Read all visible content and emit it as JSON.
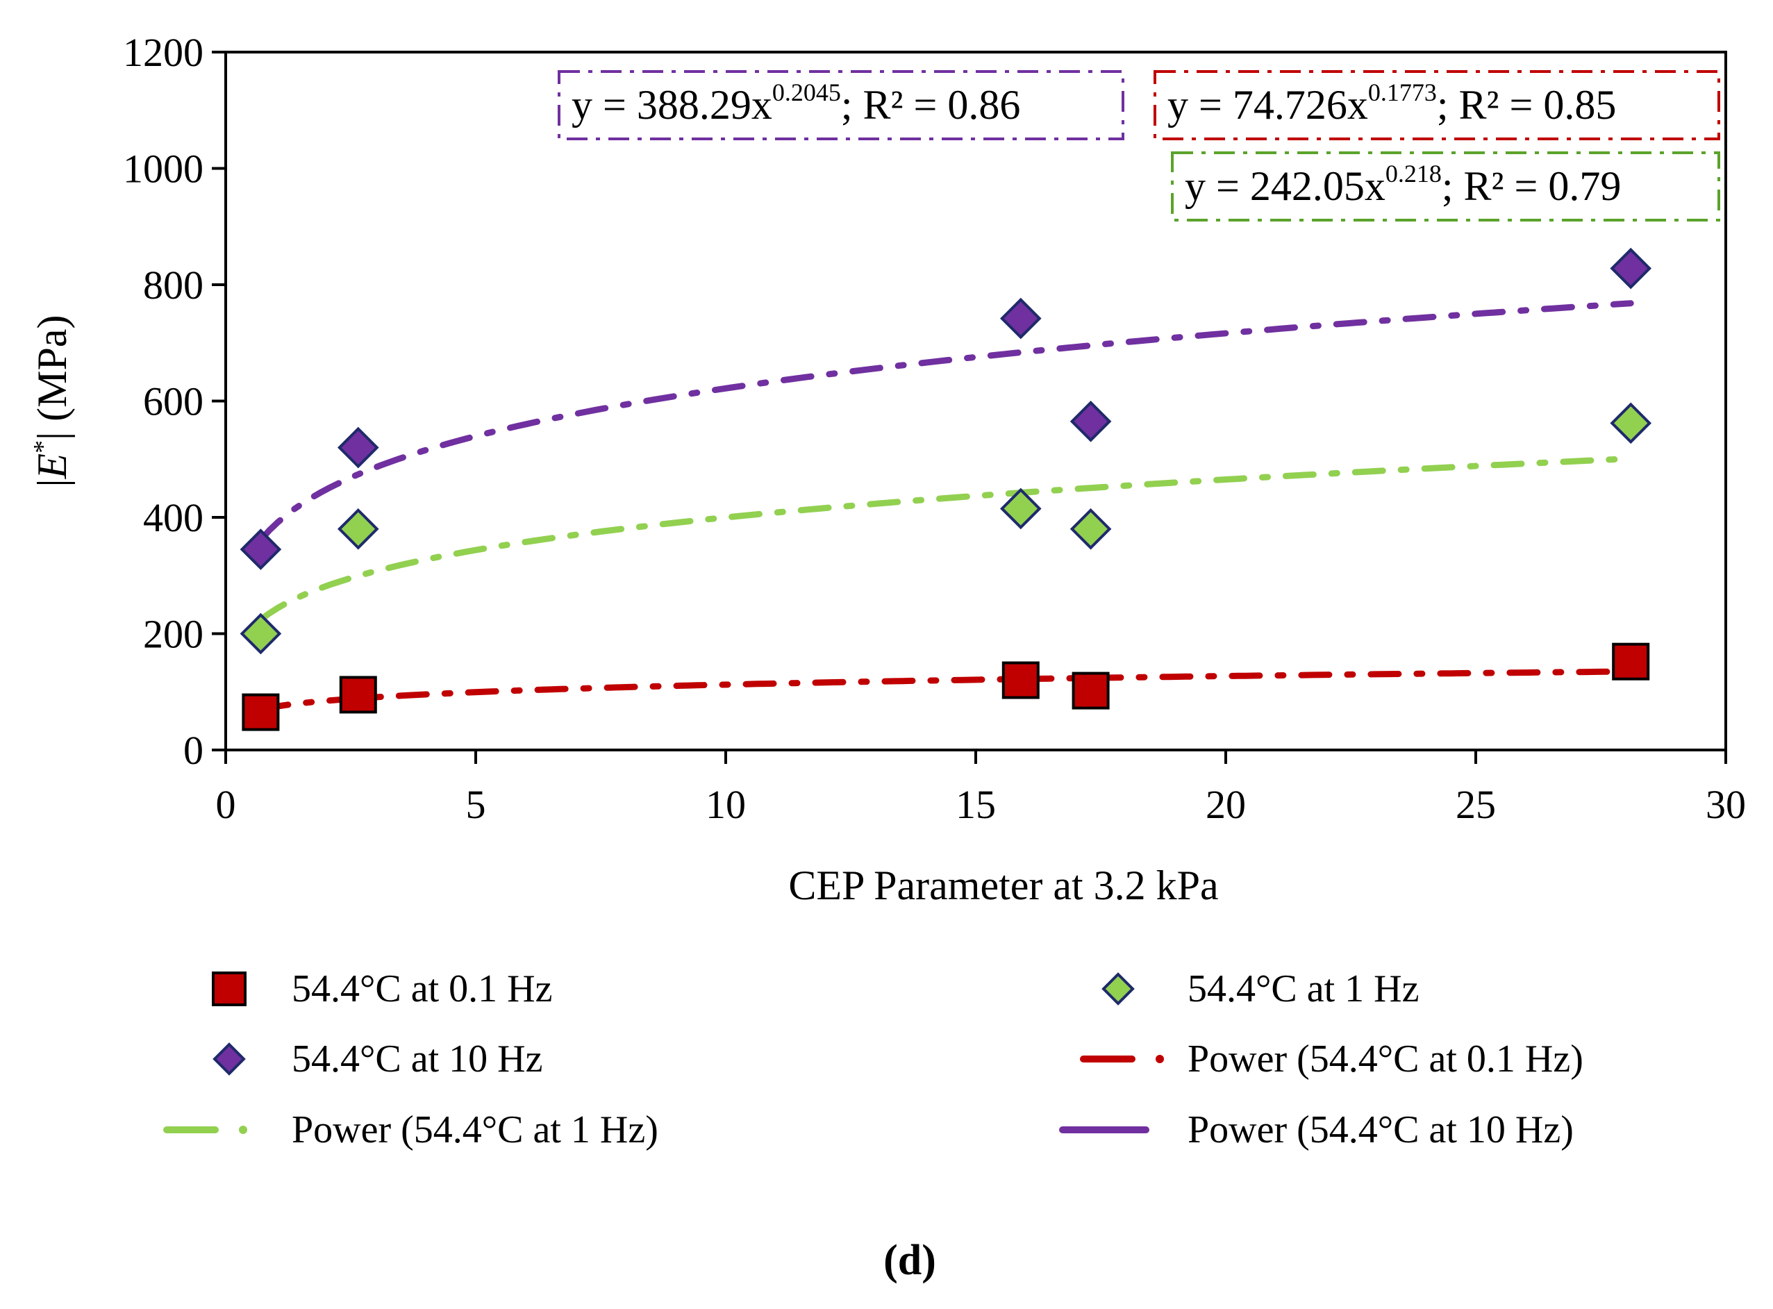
{
  "chart_data": {
    "type": "scatter",
    "xlabel": "CEP Parameter at 3.2 kPa",
    "ylabel_parts": [
      "|",
      "E",
      "*",
      "| (MPa)"
    ],
    "xlim": [
      0,
      30
    ],
    "ylim": [
      0,
      1200
    ],
    "x_ticks": [
      "0",
      "5",
      "10",
      "15",
      "20",
      "25",
      "30"
    ],
    "y_ticks": [
      "0",
      "200",
      "400",
      "600",
      "800",
      "1000",
      "1200"
    ],
    "panel_label": "(d)",
    "series": [
      {
        "name": "54.4°C at 0.1 Hz",
        "marker": "square",
        "color": "#C00000",
        "x": [
          0.7,
          2.65,
          15.9,
          17.3,
          28.1
        ],
        "y": [
          65,
          95,
          120,
          102,
          152
        ]
      },
      {
        "name": "54.4°C at 1 Hz",
        "marker": "diamond",
        "color": "#92D050",
        "x": [
          0.7,
          2.65,
          15.9,
          17.3,
          28.1
        ],
        "y": [
          200,
          380,
          415,
          380,
          562
        ]
      },
      {
        "name": "54.4°C at 10 Hz",
        "marker": "diamond",
        "color": "#7030A0",
        "x": [
          0.7,
          2.65,
          15.9,
          17.3,
          28.1
        ],
        "y": [
          345,
          520,
          742,
          565,
          828
        ]
      }
    ],
    "trendlines": [
      {
        "name": "Power (54.4°C at 0.1 Hz)",
        "color": "#C00000",
        "coef": 74.726,
        "exponent": 0.1773,
        "x_range": [
          0.7,
          28.1
        ],
        "equation": {
          "prefix": "y = 74.726x",
          "sup": "0.1773",
          "suffix": ";  R² = 0.85"
        }
      },
      {
        "name": "Power (54.4°C at 1 Hz)",
        "color": "#92D050",
        "coef": 242.05,
        "exponent": 0.218,
        "x_range": [
          0.7,
          28.1
        ],
        "equation": {
          "prefix": "y = 242.05x",
          "sup": "0.218",
          "suffix": ";  R² = 0.79"
        }
      },
      {
        "name": "Power (54.4°C at 10 Hz)",
        "color": "#7030A0",
        "coef": 388.29,
        "exponent": 0.2045,
        "x_range": [
          0.7,
          28.1
        ],
        "equation": {
          "prefix": "y = 388.29x",
          "sup": "0.2045",
          "suffix": ";  R² = 0.86"
        }
      }
    ],
    "legend": [
      {
        "label": "54.4°C at 0.1 Hz",
        "kind": "square",
        "color": "#C00000"
      },
      {
        "label": "54.4°C at 1 Hz",
        "kind": "diamond",
        "color": "#92D050"
      },
      {
        "label": "54.4°C at 10 Hz",
        "kind": "diamond",
        "color": "#7030A0"
      },
      {
        "label": "Power (54.4°C at 0.1 Hz)",
        "kind": "dashdot",
        "color": "#C00000"
      },
      {
        "label": "Power (54.4°C at 1 Hz)",
        "kind": "dashdot",
        "color": "#92D050"
      },
      {
        "label": "Power (54.4°C at 10 Hz)",
        "kind": "solid",
        "color": "#7030A0"
      }
    ]
  }
}
